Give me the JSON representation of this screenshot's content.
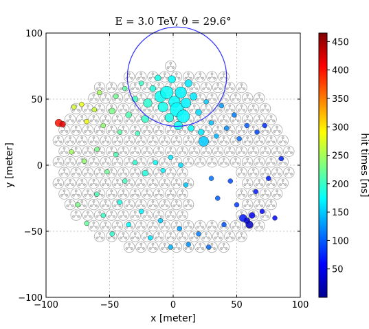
{
  "chart_data": {
    "type": "scatter",
    "title": "E = 3.0 TeV, θ = 29.6°",
    "xlabel": "x [meter]",
    "ylabel": "y [meter]",
    "xlim": [
      -100,
      100
    ],
    "ylim": [
      -100,
      100
    ],
    "xticks": [
      "−100",
      "−50",
      "0",
      "50",
      "100"
    ],
    "yticks": [
      "−100",
      "−50",
      "0",
      "50",
      "100"
    ],
    "grid": true,
    "colorbar": {
      "label": "hit times [ns]",
      "min": 0,
      "max": 465,
      "ticks": [
        "50",
        "100",
        "150",
        "200",
        "250",
        "300",
        "350",
        "400",
        "450"
      ],
      "tick_values": [
        50,
        100,
        150,
        200,
        250,
        300,
        350,
        400,
        450
      ],
      "colormap": "jet"
    },
    "circle": {
      "cx": 3,
      "cy": 67,
      "r": 39,
      "color": "#2b2bff"
    },
    "array_bounds": {
      "x": [
        -95,
        95
      ],
      "y": [
        -70,
        75
      ],
      "notch": {
        "x": [
          15,
          50
        ],
        "y": [
          -40,
          0
        ]
      },
      "station_spacing": 9.3,
      "station_marker_radius": 4.2
    },
    "hits": [
      {
        "x": -90,
        "y": 32,
        "t": 400,
        "s": 4
      },
      {
        "x": -87,
        "y": 31,
        "t": 420,
        "s": 3
      },
      {
        "x": -78,
        "y": 44,
        "t": 270,
        "s": 2
      },
      {
        "x": -72,
        "y": 46,
        "t": 280,
        "s": 2
      },
      {
        "x": -68,
        "y": 33,
        "t": 285,
        "s": 2
      },
      {
        "x": -62,
        "y": 42,
        "t": 265,
        "s": 2
      },
      {
        "x": -58,
        "y": 55,
        "t": 250,
        "s": 2
      },
      {
        "x": -55,
        "y": 30,
        "t": 240,
        "s": 2
      },
      {
        "x": -48,
        "y": 41,
        "t": 230,
        "s": 3
      },
      {
        "x": -45,
        "y": 52,
        "t": 225,
        "s": 2
      },
      {
        "x": -42,
        "y": 25,
        "t": 215,
        "s": 2
      },
      {
        "x": -38,
        "y": 58,
        "t": 215,
        "s": 2
      },
      {
        "x": -35,
        "y": 38,
        "t": 210,
        "s": 3
      },
      {
        "x": -30,
        "y": 50,
        "t": 205,
        "s": 3
      },
      {
        "x": -28,
        "y": 24,
        "t": 205,
        "s": 2
      },
      {
        "x": -25,
        "y": 62,
        "t": 200,
        "s": 2
      },
      {
        "x": -22,
        "y": 35,
        "t": 200,
        "s": 4
      },
      {
        "x": -20,
        "y": 47,
        "t": 195,
        "s": 5
      },
      {
        "x": -16,
        "y": 58,
        "t": 190,
        "s": 3
      },
      {
        "x": -12,
        "y": 66,
        "t": 185,
        "s": 3
      },
      {
        "x": -10,
        "y": 52,
        "t": 180,
        "s": 7
      },
      {
        "x": -8,
        "y": 44,
        "t": 182,
        "s": 6
      },
      {
        "x": -5,
        "y": 55,
        "t": 178,
        "s": 8
      },
      {
        "x": -3,
        "y": 36,
        "t": 185,
        "s": 5
      },
      {
        "x": -1,
        "y": 65,
        "t": 175,
        "s": 4
      },
      {
        "x": 1,
        "y": 48,
        "t": 175,
        "s": 7
      },
      {
        "x": 3,
        "y": 42,
        "t": 175,
        "s": 9
      },
      {
        "x": 4,
        "y": 30,
        "t": 180,
        "s": 5
      },
      {
        "x": 6,
        "y": 55,
        "t": 170,
        "s": 7
      },
      {
        "x": 8,
        "y": 37,
        "t": 172,
        "s": 8
      },
      {
        "x": 10,
        "y": 47,
        "t": 170,
        "s": 6
      },
      {
        "x": 12,
        "y": 62,
        "t": 165,
        "s": 4
      },
      {
        "x": 14,
        "y": 28,
        "t": 175,
        "s": 3
      },
      {
        "x": 16,
        "y": 52,
        "t": 165,
        "s": 4
      },
      {
        "x": 20,
        "y": 40,
        "t": 160,
        "s": 3
      },
      {
        "x": 22,
        "y": 25,
        "t": 165,
        "s": 3
      },
      {
        "x": 24,
        "y": 18,
        "t": 150,
        "s": 6
      },
      {
        "x": 26,
        "y": 48,
        "t": 150,
        "s": 2
      },
      {
        "x": 30,
        "y": 32,
        "t": 145,
        "s": 2
      },
      {
        "x": 34,
        "y": 22,
        "t": 140,
        "s": 2
      },
      {
        "x": 38,
        "y": 45,
        "t": 130,
        "s": 2
      },
      {
        "x": 42,
        "y": 28,
        "t": 120,
        "s": 2
      },
      {
        "x": 48,
        "y": 38,
        "t": 115,
        "s": 2
      },
      {
        "x": 52,
        "y": 20,
        "t": 110,
        "s": 2
      },
      {
        "x": 58,
        "y": 30,
        "t": 100,
        "s": 2
      },
      {
        "x": 66,
        "y": 25,
        "t": 90,
        "s": 2
      },
      {
        "x": 72,
        "y": 30,
        "t": 80,
        "s": 2
      },
      {
        "x": -80,
        "y": 10,
        "t": 250,
        "s": 2
      },
      {
        "x": -70,
        "y": 3,
        "t": 240,
        "s": 2
      },
      {
        "x": -60,
        "y": 12,
        "t": 230,
        "s": 2
      },
      {
        "x": -52,
        "y": -5,
        "t": 225,
        "s": 2
      },
      {
        "x": -45,
        "y": 8,
        "t": 210,
        "s": 2
      },
      {
        "x": -38,
        "y": -12,
        "t": 205,
        "s": 2
      },
      {
        "x": -30,
        "y": 2,
        "t": 195,
        "s": 2
      },
      {
        "x": -22,
        "y": -6,
        "t": 190,
        "s": 3
      },
      {
        "x": -14,
        "y": 2,
        "t": 175,
        "s": 2
      },
      {
        "x": -8,
        "y": -4,
        "t": 170,
        "s": 2
      },
      {
        "x": -2,
        "y": 6,
        "t": 165,
        "s": 2
      },
      {
        "x": 6,
        "y": 0,
        "t": 160,
        "s": 2
      },
      {
        "x": 10,
        "y": -15,
        "t": 150,
        "s": 2
      },
      {
        "x": -75,
        "y": -30,
        "t": 230,
        "s": 2
      },
      {
        "x": -68,
        "y": -44,
        "t": 220,
        "s": 2
      },
      {
        "x": -60,
        "y": -22,
        "t": 210,
        "s": 2
      },
      {
        "x": -55,
        "y": -38,
        "t": 200,
        "s": 2
      },
      {
        "x": -48,
        "y": -52,
        "t": 195,
        "s": 2
      },
      {
        "x": -42,
        "y": -28,
        "t": 185,
        "s": 2
      },
      {
        "x": -35,
        "y": -45,
        "t": 175,
        "s": 2
      },
      {
        "x": -25,
        "y": -35,
        "t": 170,
        "s": 2
      },
      {
        "x": -18,
        "y": -55,
        "t": 160,
        "s": 2
      },
      {
        "x": -10,
        "y": -42,
        "t": 150,
        "s": 2
      },
      {
        "x": -2,
        "y": -62,
        "t": 140,
        "s": 2
      },
      {
        "x": 5,
        "y": -48,
        "t": 130,
        "s": 2
      },
      {
        "x": 12,
        "y": -60,
        "t": 125,
        "s": 2
      },
      {
        "x": 20,
        "y": -52,
        "t": 115,
        "s": 2
      },
      {
        "x": 28,
        "y": -62,
        "t": 105,
        "s": 2
      },
      {
        "x": 30,
        "y": -10,
        "t": 110,
        "s": 2
      },
      {
        "x": 35,
        "y": -25,
        "t": 100,
        "s": 2
      },
      {
        "x": 40,
        "y": -45,
        "t": 95,
        "s": 2
      },
      {
        "x": 45,
        "y": -12,
        "t": 90,
        "s": 2
      },
      {
        "x": 50,
        "y": -30,
        "t": 85,
        "s": 2
      },
      {
        "x": 55,
        "y": -40,
        "t": 70,
        "s": 4
      },
      {
        "x": 58,
        "y": -42,
        "t": 40,
        "s": 3
      },
      {
        "x": 60,
        "y": -45,
        "t": 30,
        "s": 4
      },
      {
        "x": 62,
        "y": -38,
        "t": 50,
        "s": 3
      },
      {
        "x": 65,
        "y": -20,
        "t": 70,
        "s": 2
      },
      {
        "x": 70,
        "y": -35,
        "t": 60,
        "s": 2
      },
      {
        "x": 75,
        "y": -10,
        "t": 70,
        "s": 2
      },
      {
        "x": 80,
        "y": -40,
        "t": 60,
        "s": 2
      },
      {
        "x": 85,
        "y": 5,
        "t": 75,
        "s": 2
      }
    ]
  }
}
